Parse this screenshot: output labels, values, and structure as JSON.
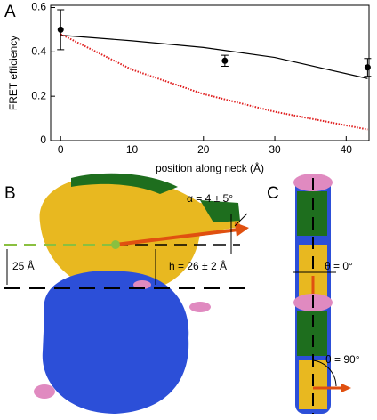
{
  "chart_data": {
    "type": "scatter",
    "panel": "A",
    "x_label": "position along neck (Å)",
    "y_label": "FRET efficiency",
    "x": [
      0,
      23,
      43
    ],
    "values": [
      0.5,
      0.36,
      0.33
    ],
    "errors": [
      0.09,
      0.025,
      0.04
    ],
    "color": "#000000",
    "lines": [
      {
        "color": "#000000",
        "style": "solid",
        "x": [
          0,
          10,
          20,
          30,
          43
        ],
        "values": [
          0.475,
          0.45,
          0.42,
          0.375,
          0.28
        ]
      },
      {
        "color": "#e02020",
        "style": "dotted",
        "x": [
          0,
          10,
          20,
          30,
          43
        ],
        "values": [
          0.48,
          0.32,
          0.21,
          0.13,
          0.05
        ]
      }
    ],
    "xlim": [
      -1.4,
      43.2
    ],
    "xticks": [
      0,
      10,
      20,
      30,
      40
    ],
    "ylim": [
      0,
      0.61
    ],
    "yticks": [
      0,
      0.2,
      0.4,
      0.6
    ]
  },
  "panels": {
    "b_label": "B",
    "alpha": "α = 4 ± 5°",
    "dist": "25 Å",
    "height": "h = 26 ± 2 Å",
    "c_label": "C",
    "theta0": "θ = 0°",
    "theta90": "θ = 90°"
  }
}
